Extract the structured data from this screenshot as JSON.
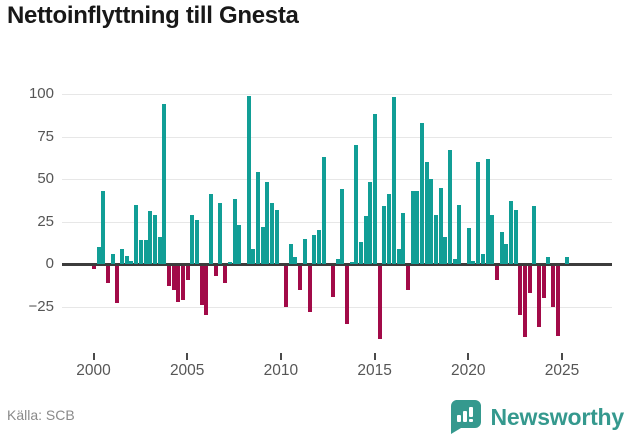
{
  "title": "Nettoinflyttning till Gnesta",
  "source": "Källa: SCB",
  "brand": {
    "name": "Newsworthy",
    "icon": "bar-chart-pin-icon"
  },
  "colors": {
    "positive_bar": "#119e96",
    "negative_bar": "#a20a48",
    "brand_teal": "#35998e",
    "grid": "#e7e7e7",
    "zero_line": "#3c3c3c",
    "axis_text": "#565656",
    "title_text": "#181818",
    "source_text": "#8a8a8a"
  },
  "chart_data": {
    "type": "bar",
    "title": "Nettoinflyttning till Gnesta",
    "xlabel": "",
    "ylabel": "",
    "frequency": "quarterly",
    "start": "2000 Q1",
    "end": "2025 Q2",
    "grid": true,
    "legend": false,
    "ylim": [
      -52,
      104
    ],
    "y_ticks": [
      {
        "value": 100,
        "label": "100"
      },
      {
        "value": 75,
        "label": "75"
      },
      {
        "value": 50,
        "label": "50"
      },
      {
        "value": 25,
        "label": "25"
      },
      {
        "value": 0,
        "label": "0"
      },
      {
        "value": -25,
        "label": "−25"
      }
    ],
    "x_ticks": [
      {
        "value": 2000,
        "label": "2000"
      },
      {
        "value": 2005,
        "label": "2005"
      },
      {
        "value": 2010,
        "label": "2010"
      },
      {
        "value": 2015,
        "label": "2015"
      },
      {
        "value": 2020,
        "label": "2020"
      },
      {
        "value": 2025,
        "label": "2025"
      }
    ],
    "values": [
      -2,
      10,
      43,
      -10,
      6,
      -22,
      9,
      5,
      2,
      35,
      14,
      14,
      31,
      29,
      16,
      94,
      -12,
      -14,
      -21,
      -20,
      -8,
      29,
      26,
      -23,
      -29,
      41,
      -6,
      36,
      -10,
      1,
      38,
      23,
      0,
      99,
      9,
      54,
      22,
      48,
      36,
      32,
      0,
      -24,
      12,
      4,
      -14,
      15,
      -27,
      17,
      20,
      63,
      0,
      -18,
      3,
      44,
      -34,
      1,
      70,
      13,
      28,
      48,
      88,
      -43,
      34,
      41,
      98,
      9,
      30,
      -14,
      43,
      43,
      83,
      60,
      50,
      29,
      45,
      16,
      67,
      3,
      35,
      0,
      21,
      2,
      60,
      6,
      62,
      29,
      -8,
      19,
      12,
      37,
      32,
      -29,
      -42,
      -16,
      34,
      -36,
      -19,
      4,
      -24,
      -41,
      0,
      4
    ]
  }
}
